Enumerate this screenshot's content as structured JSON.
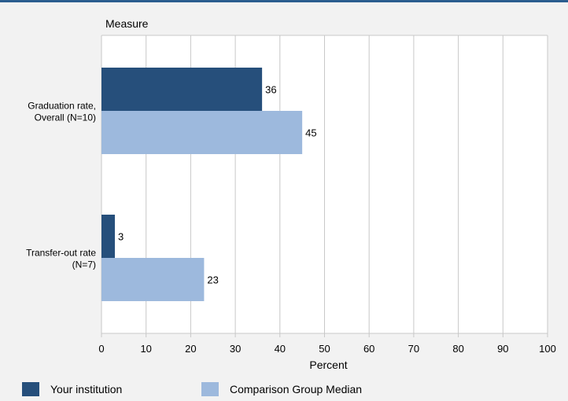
{
  "chart_data": {
    "type": "bar",
    "orientation": "horizontal",
    "title": "Measure",
    "xlabel": "Percent",
    "xlim": [
      0,
      100
    ],
    "xticks": [
      0,
      10,
      20,
      30,
      40,
      50,
      60,
      70,
      80,
      90,
      100
    ],
    "grid": true,
    "legend_position": "bottom",
    "categories": [
      [
        "Graduation rate,",
        "Overall (N=10)"
      ],
      [
        "Transfer-out rate",
        "(N=7)"
      ]
    ],
    "series": [
      {
        "name": "Your institution",
        "color": "#264f7b",
        "values": [
          36,
          3
        ]
      },
      {
        "name": "Comparison Group Median",
        "color": "#9db9dd",
        "values": [
          45,
          23
        ]
      }
    ]
  },
  "legend": {
    "items": [
      {
        "label": "Your institution",
        "color": "#264f7b"
      },
      {
        "label": "Comparison Group Median",
        "color": "#9db9dd"
      }
    ]
  }
}
